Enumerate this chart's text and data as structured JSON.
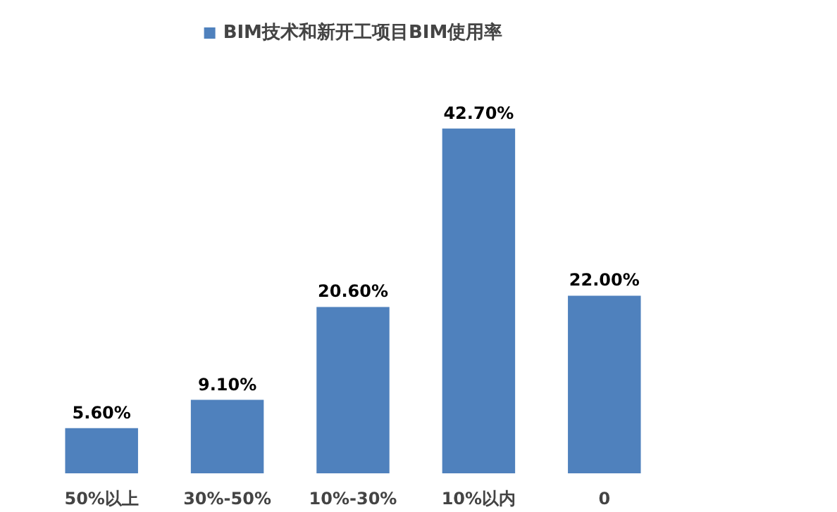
{
  "chart_data": {
    "type": "bar",
    "categories": [
      "50%以上",
      "30%-50%",
      "10%-30%",
      "10%以内",
      "0"
    ],
    "series": [
      {
        "name": "BIM技术和新开工项目BIM使用率",
        "color": "#4f81bd",
        "values": [
          5.6,
          9.1,
          20.6,
          42.7,
          22.0
        ],
        "value_labels": [
          "5.60%",
          "9.10%",
          "20.60%",
          "42.70%",
          "22.00%"
        ]
      }
    ],
    "legend": "top",
    "grid": false
  }
}
